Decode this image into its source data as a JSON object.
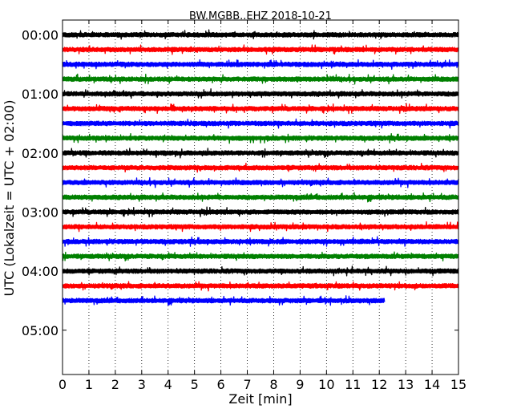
{
  "chart_data": {
    "type": "line",
    "title": "BW.MGBB..EHZ 2018-10-21",
    "xlabel": "Zeit  [min]",
    "ylabel": "UTC (Lokalzeit = UTC + 02:00)",
    "xlim": [
      0,
      15
    ],
    "xticks": [
      "0",
      "1",
      "2",
      "3",
      "4",
      "5",
      "6",
      "7",
      "8",
      "9",
      "10",
      "11",
      "12",
      "13",
      "14",
      "15"
    ],
    "ylim_minutes": [
      -15,
      345
    ],
    "yticks": [
      {
        "label": "00:00",
        "minutes": 0
      },
      {
        "label": "01:00",
        "minutes": 60
      },
      {
        "label": "02:00",
        "minutes": 120
      },
      {
        "label": "03:00",
        "minutes": 180
      },
      {
        "label": "04:00",
        "minutes": 240
      },
      {
        "label": "05:00",
        "minutes": 300
      }
    ],
    "grid": "vertical dotted lines at each minute",
    "trace_colors": [
      "#000000",
      "#ff0000",
      "#0000ff",
      "#008000"
    ],
    "trace_interval_minutes": 15,
    "traces": [
      {
        "start": "00:00",
        "end_minute": 15
      },
      {
        "start": "00:15",
        "end_minute": 15
      },
      {
        "start": "00:30",
        "end_minute": 15
      },
      {
        "start": "00:45",
        "end_minute": 15
      },
      {
        "start": "01:00",
        "end_minute": 15
      },
      {
        "start": "01:15",
        "end_minute": 15
      },
      {
        "start": "01:30",
        "end_minute": 15
      },
      {
        "start": "01:45",
        "end_minute": 15
      },
      {
        "start": "02:00",
        "end_minute": 15
      },
      {
        "start": "02:15",
        "end_minute": 15
      },
      {
        "start": "02:30",
        "end_minute": 15
      },
      {
        "start": "02:45",
        "end_minute": 15
      },
      {
        "start": "03:00",
        "end_minute": 15
      },
      {
        "start": "03:15",
        "end_minute": 15
      },
      {
        "start": "03:30",
        "end_minute": 15
      },
      {
        "start": "03:45",
        "end_minute": 15
      },
      {
        "start": "04:00",
        "end_minute": 15
      },
      {
        "start": "04:15",
        "end_minute": 15
      },
      {
        "start": "04:30",
        "end_minute": 12.2
      }
    ]
  }
}
